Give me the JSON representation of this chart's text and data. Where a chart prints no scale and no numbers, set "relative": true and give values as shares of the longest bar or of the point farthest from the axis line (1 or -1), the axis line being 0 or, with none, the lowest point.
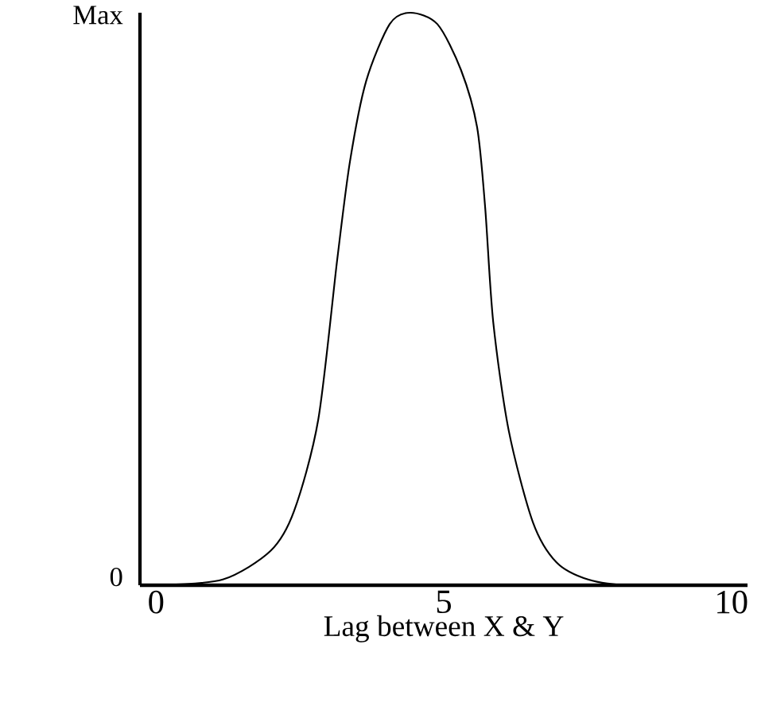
{
  "chart_data": {
    "type": "line",
    "xlabel": "Lag between X & Y",
    "x": [
      0.05,
      1.16,
      1.99,
      2.4,
      2.82,
      3.15,
      3.37,
      3.65,
      4.06,
      4.42,
      4.89,
      5.3,
      5.58,
      5.72,
      5.86,
      6.13,
      6.55,
      6.96,
      7.51,
      8.2,
      9.86
    ],
    "values": [
      0.0,
      0.01,
      0.06,
      0.13,
      0.29,
      0.57,
      0.74,
      0.88,
      0.98,
      1.0,
      0.98,
      0.9,
      0.8,
      0.66,
      0.46,
      0.27,
      0.11,
      0.04,
      0.01,
      0.0,
      0.0
    ],
    "color": "#000000",
    "xlim": [
      -0.28,
      10.28
    ],
    "relative": true,
    "annotations": [
      "Max",
      "0"
    ],
    "xticks": [
      0,
      5,
      10
    ],
    "grid": false,
    "marker": "none",
    "line_style": "solid"
  }
}
